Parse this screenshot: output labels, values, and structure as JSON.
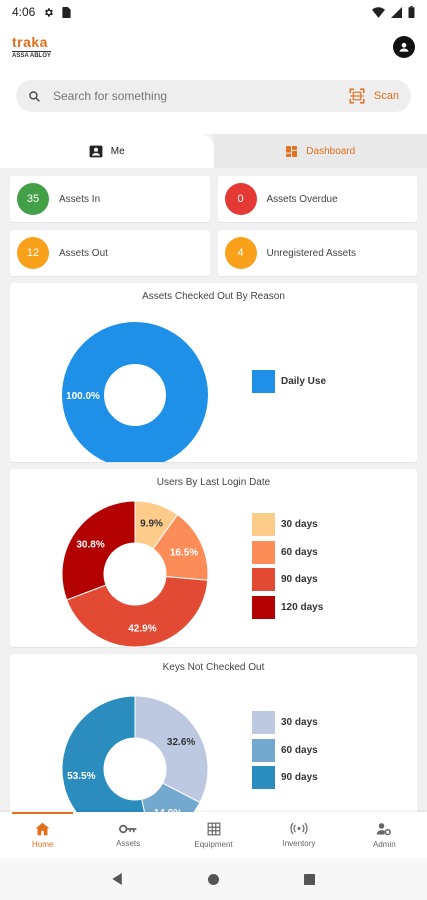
{
  "status_bar": {
    "time": "4:06"
  },
  "header": {
    "logo_text": "traka",
    "logo_sub": "ASSA ABLOY"
  },
  "search": {
    "placeholder": "Search for something",
    "scan_label": "Scan"
  },
  "tabs": [
    {
      "label": "Me",
      "active": false
    },
    {
      "label": "Dashboard",
      "active": true
    }
  ],
  "stats": [
    {
      "count": "35",
      "label": "Assets In",
      "color": "#43a047"
    },
    {
      "count": "0",
      "label": "Assets Overdue",
      "color": "#e53935"
    },
    {
      "count": "12",
      "label": "Assets Out",
      "color": "#f9a11b"
    },
    {
      "count": "4",
      "label": "Unregistered Assets",
      "color": "#f9a11b"
    }
  ],
  "chart_data": [
    {
      "type": "pie",
      "title": "Assets Checked Out By Reason",
      "categories": [
        "Daily Use"
      ],
      "values": [
        100.0
      ],
      "labels": [
        "100.0%"
      ],
      "colors": [
        "#1e90e8"
      ],
      "legend": "right"
    },
    {
      "type": "pie",
      "title": "Users By Last Login Date",
      "categories": [
        "30 days",
        "60 days",
        "90 days",
        "120 days"
      ],
      "values": [
        9.9,
        16.5,
        42.9,
        30.8
      ],
      "labels": [
        "9.9%",
        "16.5%",
        "42.9%",
        "30.8%"
      ],
      "colors": [
        "#fdcc8a",
        "#fc8d59",
        "#e34a33",
        "#b30000"
      ],
      "legend": "right"
    },
    {
      "type": "pie",
      "title": "Keys Not Checked Out",
      "categories": [
        "30 days",
        "60 days",
        "90 days"
      ],
      "values": [
        32.6,
        14.0,
        53.5
      ],
      "labels": [
        "32.6%",
        "14.0%",
        "53.5%"
      ],
      "colors": [
        "#bdc9e1",
        "#74a9cf",
        "#2b8cbe"
      ],
      "legend": "right"
    }
  ],
  "bottom_nav": [
    {
      "label": "Home",
      "icon": "home-icon",
      "active": true
    },
    {
      "label": "Assets",
      "icon": "key-icon",
      "active": false
    },
    {
      "label": "Equipment",
      "icon": "grid-icon",
      "active": false
    },
    {
      "label": "Inventory",
      "icon": "radio-icon",
      "active": false
    },
    {
      "label": "Admin",
      "icon": "admin-icon",
      "active": false
    }
  ],
  "theme": {
    "accent": "#e36e1c"
  }
}
